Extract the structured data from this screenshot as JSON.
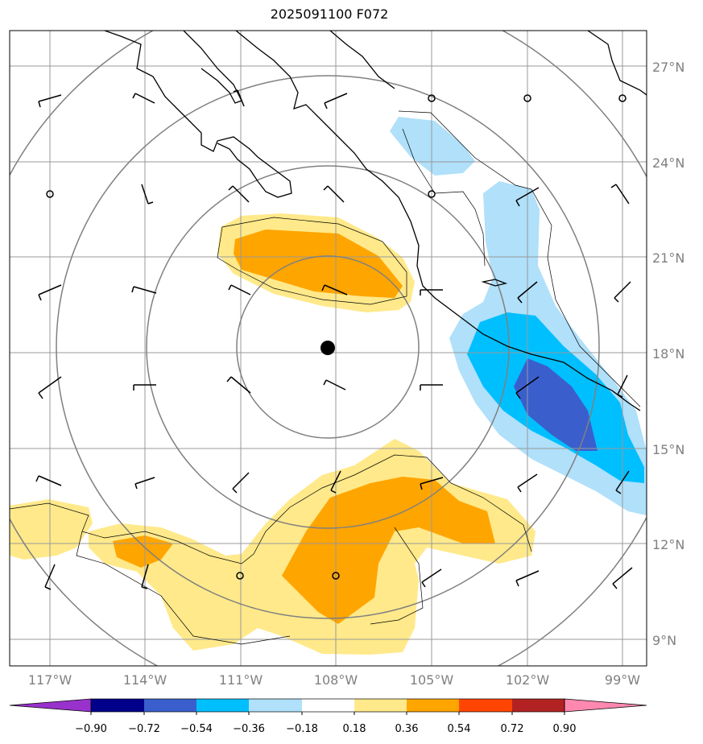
{
  "title": "2025091100 F072",
  "map": {
    "lat_labels": [
      "27°N",
      "24°N",
      "21°N",
      "18°N",
      "15°N",
      "12°N",
      "9°N"
    ],
    "lon_labels": [
      "117°W",
      "114°W",
      "111°W",
      "108°W",
      "105°W",
      "102°W",
      "99°W"
    ],
    "center_marker": "storm-center-dot"
  },
  "colorbar": {
    "labels": [
      "−0.90",
      "−0.72",
      "−0.54",
      "−0.36",
      "−0.18",
      "0.18",
      "0.36",
      "0.54",
      "0.72",
      "0.90"
    ],
    "colors": [
      "#9932CC",
      "#00008B",
      "#3A5FCD",
      "#00BFFF",
      "#B0E0FA",
      "#FFFFFF",
      "#FFE98A",
      "#FFA500",
      "#FF4500",
      "#B22222",
      "#FF88B0"
    ]
  }
}
